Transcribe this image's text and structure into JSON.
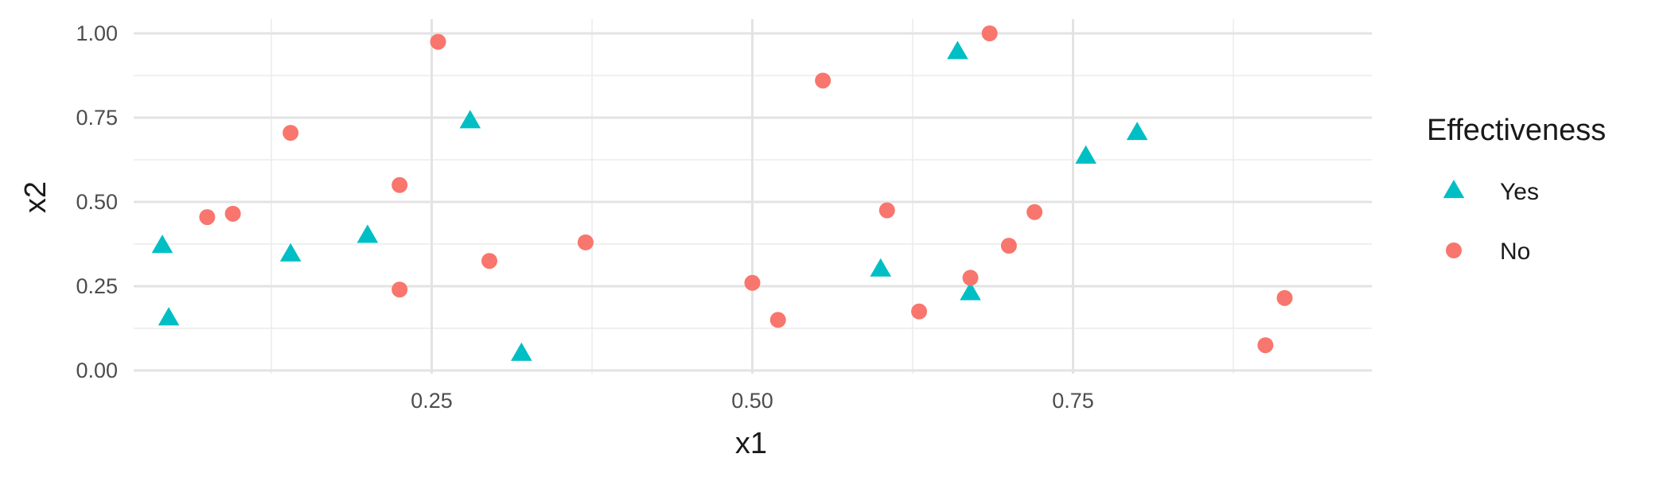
{
  "chart_data": {
    "type": "scatter",
    "title": "",
    "xlabel": "x1",
    "ylabel": "x2",
    "xlim": [
      0.0,
      0.96
    ],
    "ylim": [
      0.0,
      1.0
    ],
    "xticks": [
      0.25,
      0.5,
      0.75
    ],
    "xtick_labels": [
      "0.25",
      "0.50",
      "0.75"
    ],
    "yticks": [
      0.0,
      0.25,
      0.5,
      0.75,
      1.0
    ],
    "ytick_labels": [
      "0.00",
      "0.25",
      "0.50",
      "0.75",
      "1.00"
    ],
    "grid": true,
    "legend_title": "Effectiveness",
    "legend_position": "right",
    "series": [
      {
        "name": "Yes",
        "shape": "triangle",
        "color": "#00BFC4",
        "points": [
          [
            0.04,
            0.37
          ],
          [
            0.045,
            0.155
          ],
          [
            0.14,
            0.345
          ],
          [
            0.2,
            0.4
          ],
          [
            0.28,
            0.74
          ],
          [
            0.32,
            0.05
          ],
          [
            0.6,
            0.3
          ],
          [
            0.66,
            0.945
          ],
          [
            0.67,
            0.23
          ],
          [
            0.76,
            0.635
          ],
          [
            0.8,
            0.705
          ]
        ]
      },
      {
        "name": "No",
        "shape": "circle",
        "color": "#F8766D",
        "points": [
          [
            0.075,
            0.455
          ],
          [
            0.095,
            0.465
          ],
          [
            0.14,
            0.705
          ],
          [
            0.225,
            0.55
          ],
          [
            0.225,
            0.24
          ],
          [
            0.255,
            0.975
          ],
          [
            0.295,
            0.325
          ],
          [
            0.37,
            0.38
          ],
          [
            0.5,
            0.26
          ],
          [
            0.52,
            0.15
          ],
          [
            0.555,
            0.86
          ],
          [
            0.605,
            0.475
          ],
          [
            0.63,
            0.175
          ],
          [
            0.67,
            0.275
          ],
          [
            0.685,
            1.0
          ],
          [
            0.7,
            0.37
          ],
          [
            0.72,
            0.47
          ],
          [
            0.9,
            0.075
          ],
          [
            0.915,
            0.215
          ]
        ]
      }
    ]
  }
}
